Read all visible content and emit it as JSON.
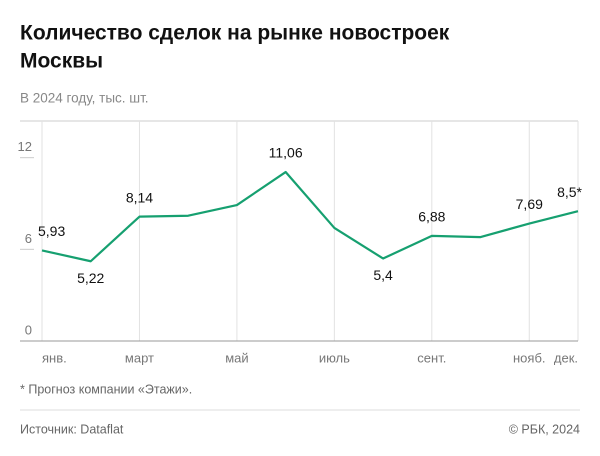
{
  "chart_data": {
    "type": "line",
    "title_lines": [
      "Количество сделок на рынке новостроек",
      "Москвы"
    ],
    "subtitle": "В 2024 году, тыс. шт.",
    "categories": [
      "янв.",
      null,
      "март",
      null,
      "май",
      null,
      "июль",
      null,
      "сент.",
      null,
      "нояб.",
      "дек."
    ],
    "values": [
      5.93,
      5.22,
      8.14,
      8.2,
      8.9,
      11.06,
      7.4,
      5.4,
      6.88,
      6.8,
      7.69,
      8.5
    ],
    "value_labels": [
      "5,93",
      "5,22",
      "8,14",
      null,
      null,
      "11,06",
      null,
      "5,4",
      "6,88",
      null,
      "7,69",
      "8,5*"
    ],
    "color": "#16a070",
    "ylim": [
      0,
      14.4
    ],
    "yticks": [
      0,
      6,
      12
    ],
    "footnote": "* Прогноз компании «Этажи».",
    "source": "Источник: Dataflat",
    "copyright": "© РБК, 2024"
  }
}
